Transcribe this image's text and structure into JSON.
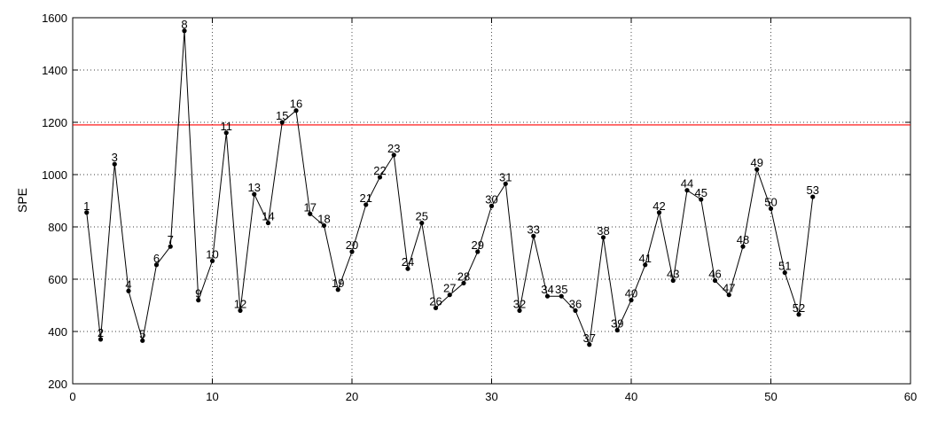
{
  "chart_data": {
    "type": "line",
    "title": "",
    "xlabel": "",
    "ylabel": "SPE",
    "xlim": [
      0,
      60
    ],
    "ylim": [
      200,
      1600
    ],
    "xticks": [
      0,
      10,
      20,
      30,
      40,
      50,
      60
    ],
    "yticks": [
      200,
      400,
      600,
      800,
      1000,
      1200,
      1400,
      1600
    ],
    "grid": true,
    "threshold": {
      "y": 1190,
      "color": "#ff0000"
    },
    "line_color": "#000000",
    "x": [
      1,
      2,
      3,
      4,
      5,
      6,
      7,
      8,
      9,
      10,
      11,
      12,
      13,
      14,
      15,
      16,
      17,
      18,
      19,
      20,
      21,
      22,
      23,
      24,
      25,
      26,
      27,
      28,
      29,
      30,
      31,
      32,
      33,
      34,
      35,
      36,
      37,
      38,
      39,
      40,
      41,
      42,
      43,
      44,
      45,
      46,
      47,
      48,
      49,
      50,
      51,
      52,
      53
    ],
    "labels": [
      "1",
      "2",
      "3",
      "4",
      "5",
      "6",
      "7",
      "8",
      "9",
      "10",
      "11",
      "12",
      "13",
      "14",
      "15",
      "16",
      "17",
      "18",
      "19",
      "20",
      "21",
      "22",
      "23",
      "24",
      "25",
      "26",
      "27",
      "28",
      "29",
      "30",
      "31",
      "32",
      "33",
      "34",
      "35",
      "36",
      "37",
      "38",
      "39",
      "40",
      "41",
      "42",
      "43",
      "44",
      "45",
      "46",
      "47",
      "48",
      "49",
      "50",
      "51",
      "52",
      "53"
    ],
    "values": [
      855,
      370,
      1040,
      555,
      365,
      655,
      725,
      1550,
      520,
      670,
      1160,
      480,
      925,
      815,
      1200,
      1245,
      850,
      805,
      560,
      705,
      885,
      990,
      1075,
      640,
      815,
      490,
      540,
      585,
      705,
      880,
      965,
      480,
      765,
      535,
      535,
      480,
      350,
      760,
      405,
      520,
      655,
      855,
      595,
      940,
      905,
      595,
      540,
      725,
      1020,
      870,
      625,
      465,
      915
    ]
  }
}
